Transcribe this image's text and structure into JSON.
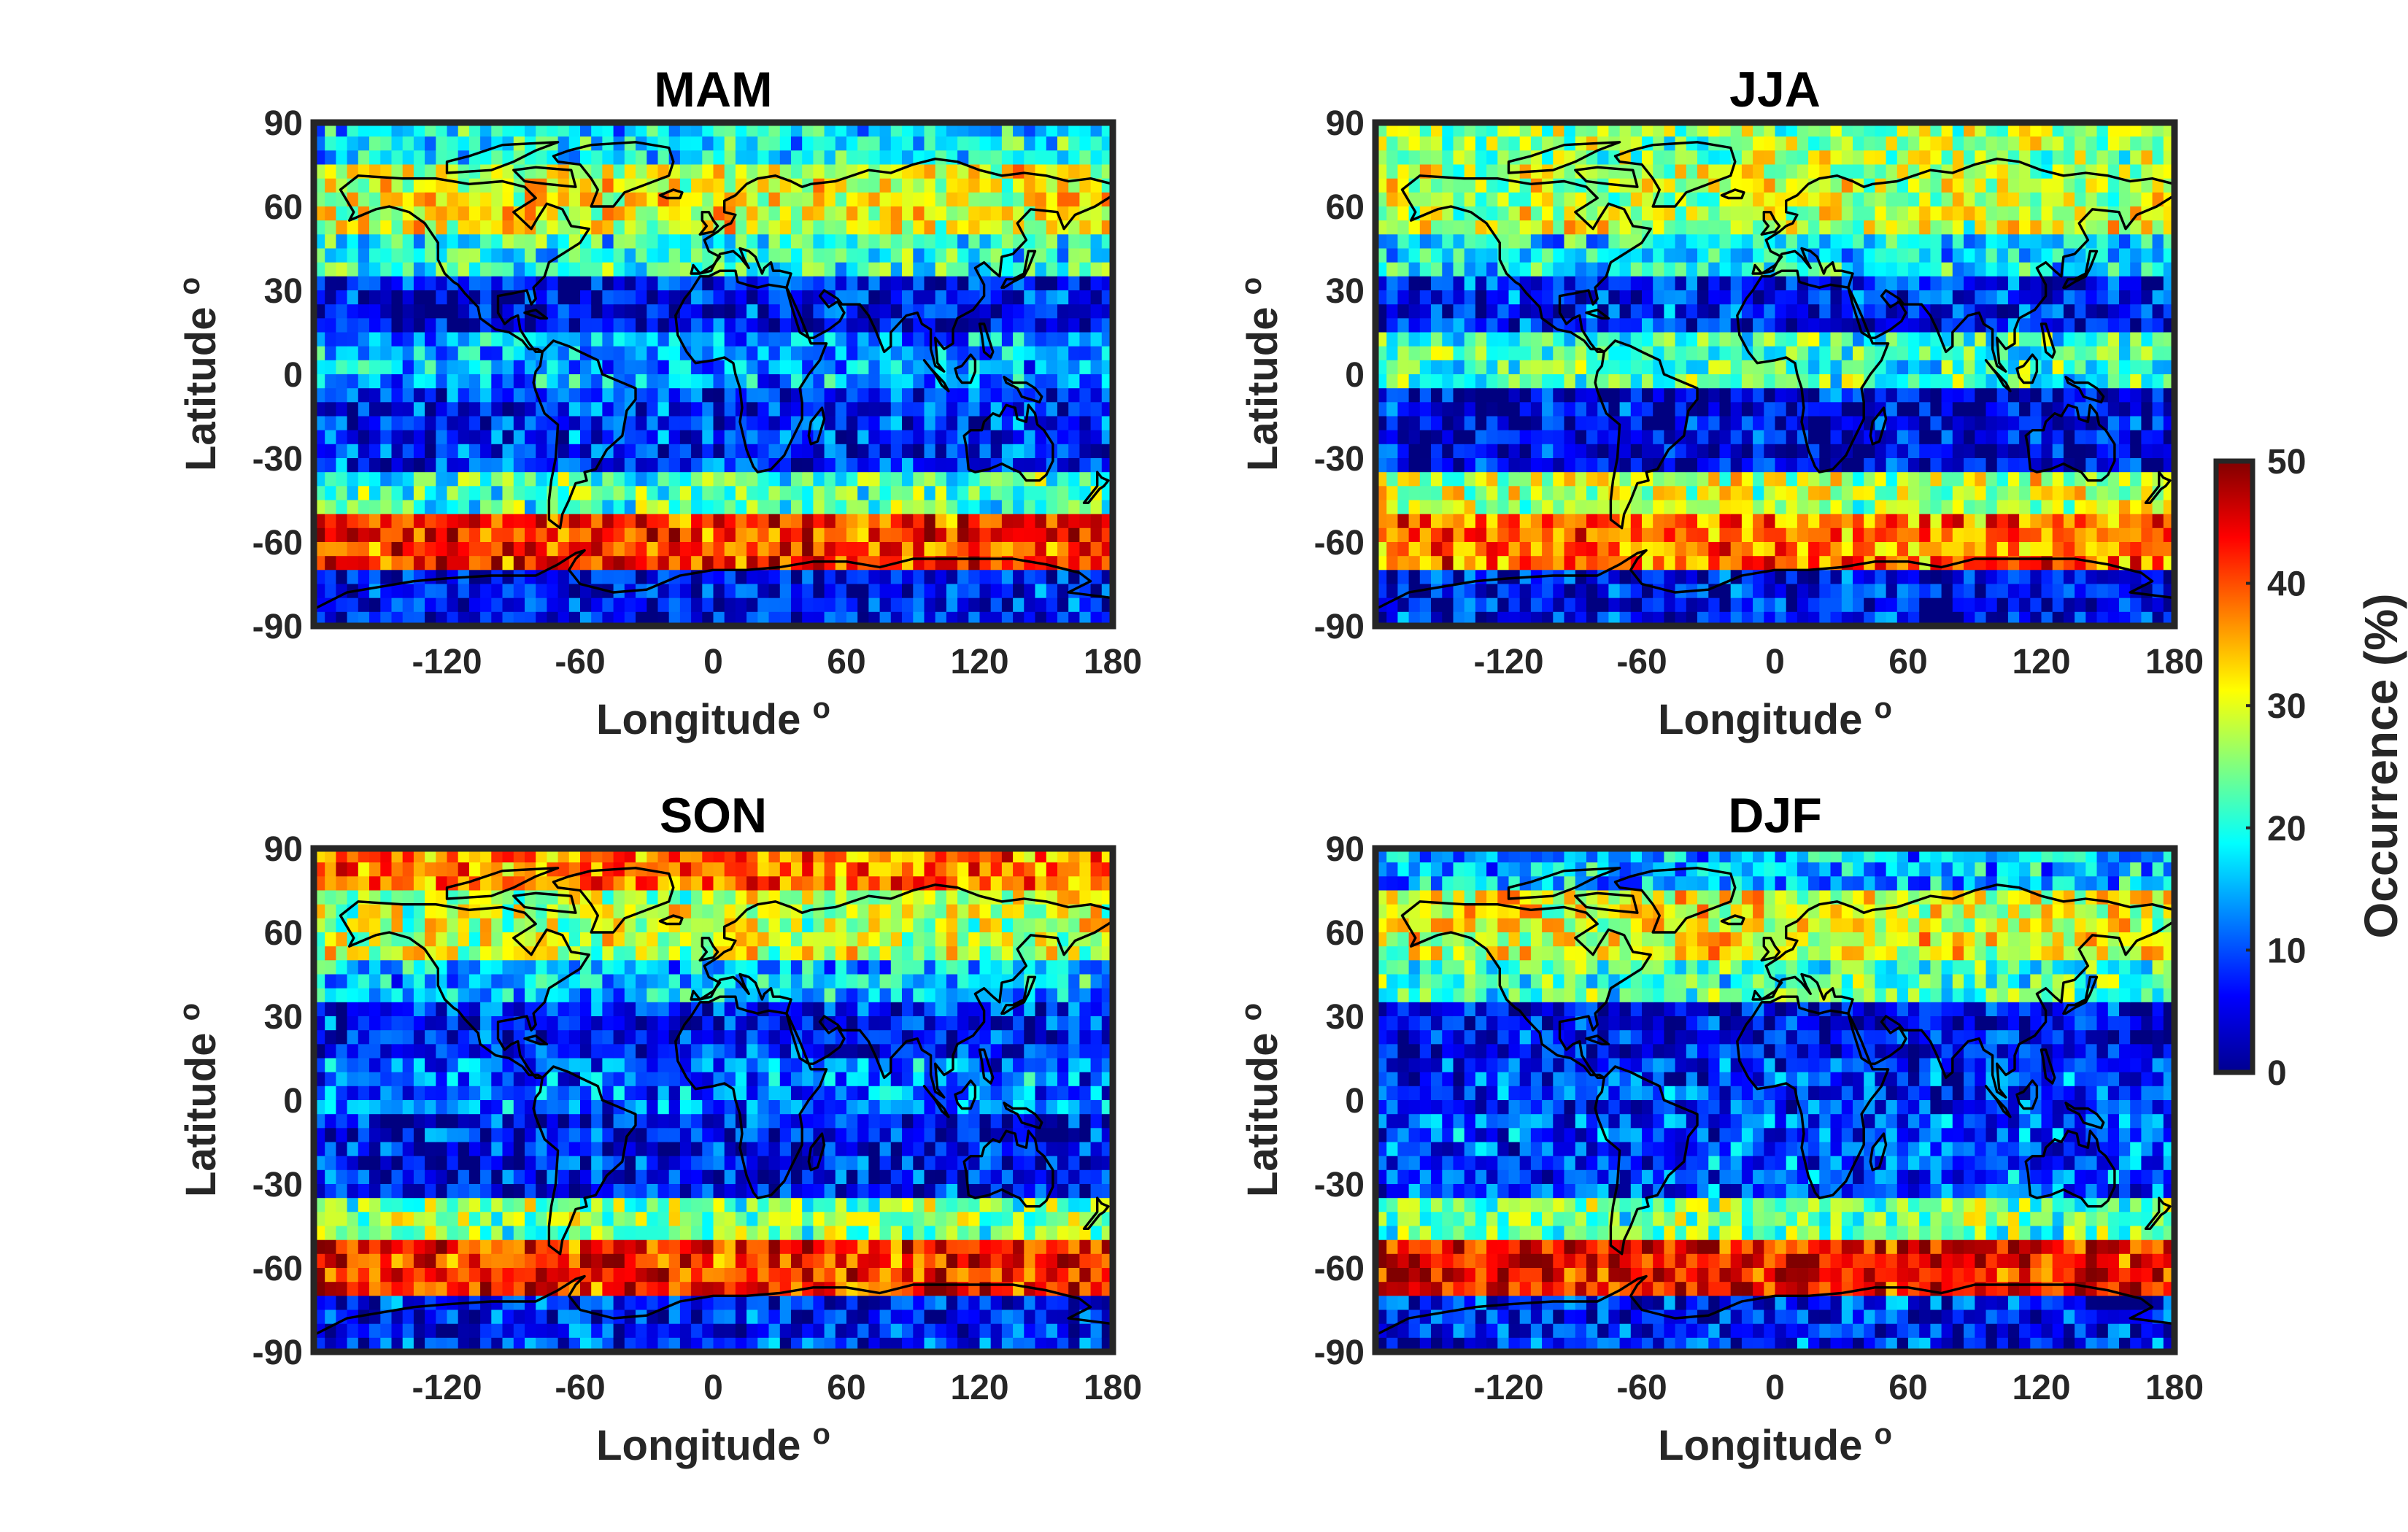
{
  "chart_data": [
    {
      "type": "heatmap",
      "title": "MAM",
      "xlabel": "Longitude",
      "ylabel": "Latitude",
      "xlim": [
        -180,
        180
      ],
      "ylim": [
        -90,
        90
      ],
      "xticks": [
        -120,
        -60,
        0,
        60,
        120,
        180
      ],
      "yticks": [
        90,
        60,
        30,
        0,
        -30,
        -60,
        -90
      ],
      "colorbar": {
        "label": "Occurrence (%)",
        "range": [
          0,
          50
        ],
        "ticks": [
          0,
          10,
          20,
          30,
          40,
          50
        ],
        "colormap": "jet"
      },
      "latitude_bands": [
        {
          "lat_range": [
            75,
            90
          ],
          "occurrence": 18
        },
        {
          "lat_range": [
            50,
            75
          ],
          "occurrence": 30
        },
        {
          "lat_range": [
            35,
            50
          ],
          "occurrence": 20
        },
        {
          "lat_range": [
            15,
            35
          ],
          "occurrence": 6
        },
        {
          "lat_range": [
            -5,
            15
          ],
          "occurrence": 14
        },
        {
          "lat_range": [
            -35,
            -5
          ],
          "occurrence": 8
        },
        {
          "lat_range": [
            -50,
            -35
          ],
          "occurrence": 22
        },
        {
          "lat_range": [
            -70,
            -50
          ],
          "occurrence": 42
        },
        {
          "lat_range": [
            -90,
            -70
          ],
          "occurrence": 6
        }
      ]
    },
    {
      "type": "heatmap",
      "title": "JJA",
      "xlabel": "Longitude",
      "ylabel": "Latitude",
      "xlim": [
        -180,
        180
      ],
      "ylim": [
        -90,
        90
      ],
      "xticks": [
        -120,
        -60,
        0,
        60,
        120,
        180
      ],
      "yticks": [
        90,
        60,
        30,
        0,
        -30,
        -60,
        -90
      ],
      "colorbar": {
        "label": "Occurrence (%)",
        "range": [
          0,
          50
        ],
        "ticks": [
          0,
          10,
          20,
          30,
          40,
          50
        ],
        "colormap": "jet"
      },
      "latitude_bands": [
        {
          "lat_range": [
            75,
            90
          ],
          "occurrence": 26
        },
        {
          "lat_range": [
            50,
            75
          ],
          "occurrence": 28
        },
        {
          "lat_range": [
            35,
            50
          ],
          "occurrence": 18
        },
        {
          "lat_range": [
            15,
            35
          ],
          "occurrence": 7
        },
        {
          "lat_range": [
            -5,
            15
          ],
          "occurrence": 22
        },
        {
          "lat_range": [
            -35,
            -5
          ],
          "occurrence": 5
        },
        {
          "lat_range": [
            -50,
            -35
          ],
          "occurrence": 28
        },
        {
          "lat_range": [
            -70,
            -50
          ],
          "occurrence": 38
        },
        {
          "lat_range": [
            -90,
            -70
          ],
          "occurrence": 6
        }
      ]
    },
    {
      "type": "heatmap",
      "title": "SON",
      "xlabel": "Longitude",
      "ylabel": "Latitude",
      "xlim": [
        -180,
        180
      ],
      "ylim": [
        -90,
        90
      ],
      "xticks": [
        -120,
        -60,
        0,
        60,
        120,
        180
      ],
      "yticks": [
        90,
        60,
        30,
        0,
        -30,
        -60,
        -90
      ],
      "colorbar": {
        "label": "Occurrence (%)",
        "range": [
          0,
          50
        ],
        "ticks": [
          0,
          10,
          20,
          30,
          40,
          50
        ],
        "colormap": "jet"
      },
      "latitude_bands": [
        {
          "lat_range": [
            75,
            90
          ],
          "occurrence": 38
        },
        {
          "lat_range": [
            50,
            75
          ],
          "occurrence": 28
        },
        {
          "lat_range": [
            35,
            50
          ],
          "occurrence": 16
        },
        {
          "lat_range": [
            15,
            35
          ],
          "occurrence": 7
        },
        {
          "lat_range": [
            -5,
            15
          ],
          "occurrence": 12
        },
        {
          "lat_range": [
            -35,
            -5
          ],
          "occurrence": 6
        },
        {
          "lat_range": [
            -50,
            -35
          ],
          "occurrence": 25
        },
        {
          "lat_range": [
            -70,
            -50
          ],
          "occurrence": 42
        },
        {
          "lat_range": [
            -90,
            -70
          ],
          "occurrence": 7
        }
      ]
    },
    {
      "type": "heatmap",
      "title": "DJF",
      "xlabel": "Longitude",
      "ylabel": "Latitude",
      "xlim": [
        -180,
        180
      ],
      "ylim": [
        -90,
        90
      ],
      "xticks": [
        -120,
        -60,
        0,
        60,
        120,
        180
      ],
      "yticks": [
        90,
        60,
        30,
        0,
        -30,
        -60,
        -90
      ],
      "colorbar": {
        "label": "Occurrence (%)",
        "range": [
          0,
          50
        ],
        "ticks": [
          0,
          10,
          20,
          30,
          40,
          50
        ],
        "colormap": "jet"
      },
      "latitude_bands": [
        {
          "lat_range": [
            75,
            90
          ],
          "occurrence": 15
        },
        {
          "lat_range": [
            50,
            75
          ],
          "occurrence": 30
        },
        {
          "lat_range": [
            35,
            50
          ],
          "occurrence": 22
        },
        {
          "lat_range": [
            15,
            35
          ],
          "occurrence": 6
        },
        {
          "lat_range": [
            -5,
            15
          ],
          "occurrence": 8
        },
        {
          "lat_range": [
            -35,
            -5
          ],
          "occurrence": 10
        },
        {
          "lat_range": [
            -50,
            -35
          ],
          "occurrence": 24
        },
        {
          "lat_range": [
            -70,
            -50
          ],
          "occurrence": 44
        },
        {
          "lat_range": [
            -90,
            -70
          ],
          "occurrence": 7
        }
      ]
    }
  ],
  "axis_labels": {
    "x": "Longitude",
    "y": "Latitude",
    "degree_mark": "o"
  },
  "colorbar": {
    "label": "Occurrence (%)",
    "ticks": [
      "0",
      "10",
      "20",
      "30",
      "40",
      "50"
    ]
  },
  "coastline_color": "#000000",
  "frame_color": "#262626"
}
